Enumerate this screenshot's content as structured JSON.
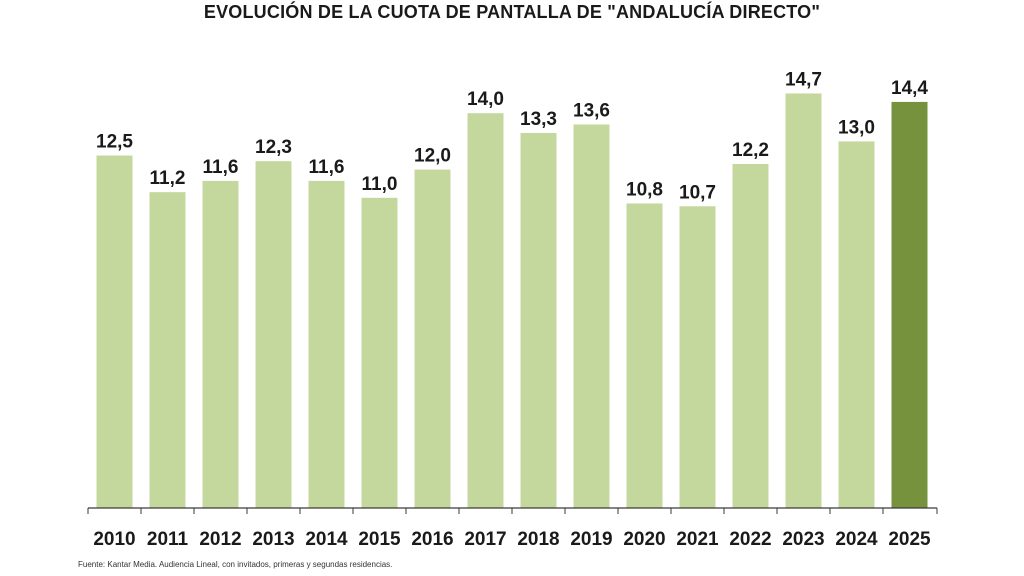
{
  "chart_data": {
    "type": "bar",
    "title": "EVOLUCIÓN DE LA CUOTA DE PANTALLA DE \"ANDALUCÍA DIRECTO\"",
    "categories": [
      "2010",
      "2011",
      "2012",
      "2013",
      "2014",
      "2015",
      "2016",
      "2017",
      "2018",
      "2019",
      "2020",
      "2021",
      "2022",
      "2023",
      "2024",
      "2025"
    ],
    "values": [
      12.5,
      11.2,
      11.6,
      12.3,
      11.6,
      11.0,
      12.0,
      14.0,
      13.3,
      13.6,
      10.8,
      10.7,
      12.2,
      14.7,
      13.0,
      14.4
    ],
    "labels": [
      "12,5",
      "11,2",
      "11,6",
      "12,3",
      "11,6",
      "11,0",
      "12,0",
      "14,0",
      "13,3",
      "13,6",
      "10,8",
      "10,7",
      "12,2",
      "14,7",
      "13,0",
      "14,4"
    ],
    "highlight_index": 15,
    "ylim": [
      0,
      16
    ],
    "xlabel": "",
    "ylabel": "",
    "grid": false,
    "colors": {
      "bar": "#c4d89e",
      "highlight": "#76923c",
      "axis": "#3a3a3a",
      "text": "#1a1a1a"
    }
  },
  "footnote": "Fuente: Kantar Media. Audiencia Lineal, con invitados, primeras y segundas residencias."
}
